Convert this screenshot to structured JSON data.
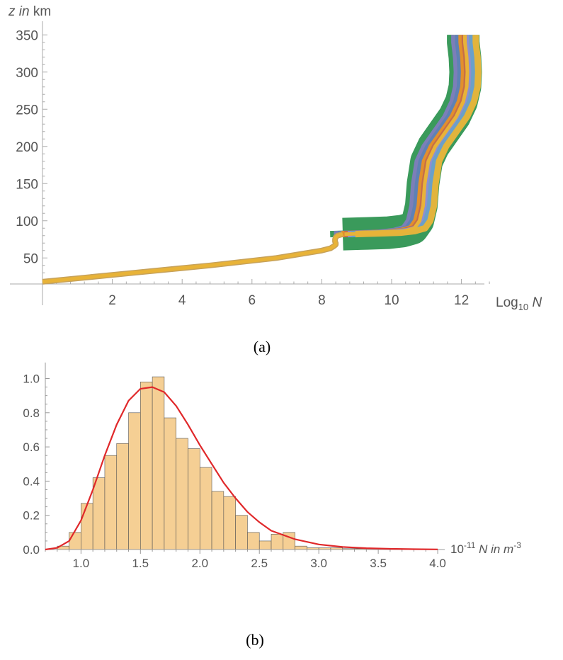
{
  "chart_data": [
    {
      "type": "line",
      "caption": "(a)",
      "y_label": {
        "var": "z",
        "mid": " in ",
        "unit": "km"
      },
      "x_label": {
        "pre": "Log",
        "sub": "10",
        "post": " N"
      },
      "xlim": [
        0,
        13.2
      ],
      "ylim": [
        15,
        360
      ],
      "x_ticks": [
        2,
        4,
        6,
        8,
        10,
        12
      ],
      "y_ticks": [
        50,
        100,
        150,
        200,
        250,
        300,
        350
      ],
      "grid": false,
      "lower_profile": {
        "z": [
          18,
          30,
          40,
          50,
          60,
          63,
          66,
          68,
          70,
          72,
          75,
          78,
          80,
          82
        ],
        "log10N": [
          0.0,
          2.6,
          4.8,
          6.7,
          8.0,
          8.25,
          8.35,
          8.4,
          8.4,
          8.38,
          8.38,
          8.4,
          8.45,
          8.6
        ]
      },
      "upper_profile": {
        "z": [
          82,
          83,
          84,
          86,
          90,
          100,
          120,
          150,
          180,
          200,
          220,
          240,
          260,
          280,
          300,
          320,
          340,
          350
        ],
        "log10N": [
          8.6,
          9.3,
          9.9,
          10.3,
          10.6,
          10.75,
          10.85,
          10.9,
          11.0,
          11.2,
          11.5,
          11.8,
          12.0,
          12.1,
          12.12,
          12.1,
          12.05,
          12.05
        ]
      },
      "series_offsets": [
        -0.4,
        -0.28,
        -0.16,
        -0.05,
        0.05,
        0.16,
        0.28,
        0.4
      ],
      "series_colors": [
        "#3a9a5b",
        "#7c7fb8",
        "#5e81b5",
        "#e28f2c",
        "#c56d4a",
        "#8f8fcf",
        "#6aa0c9",
        "#e2b43c"
      ],
      "highlight_color": "#e8b338"
    },
    {
      "type": "bar",
      "caption": "(b)",
      "x_label": {
        "pre": "10",
        "sup": "-11",
        "mid": " N in m",
        "sup2": "-3"
      },
      "xlim": [
        0.7,
        4.0
      ],
      "ylim": [
        0,
        1.05
      ],
      "x_ticks": [
        1.0,
        1.5,
        2.0,
        2.5,
        3.0,
        3.5,
        4.0
      ],
      "y_ticks": [
        0.0,
        0.2,
        0.4,
        0.6,
        0.8,
        1.0
      ],
      "bin_width": 0.1,
      "bin_starts": [
        0.8,
        0.9,
        1.0,
        1.1,
        1.2,
        1.3,
        1.4,
        1.5,
        1.6,
        1.7,
        1.8,
        1.9,
        2.0,
        2.1,
        2.2,
        2.3,
        2.4,
        2.5,
        2.6,
        2.7,
        2.8,
        2.9,
        3.0,
        3.1,
        3.2,
        3.3,
        3.4,
        3.5
      ],
      "values": [
        0.02,
        0.1,
        0.27,
        0.42,
        0.55,
        0.62,
        0.8,
        0.98,
        1.01,
        0.77,
        0.65,
        0.59,
        0.48,
        0.34,
        0.31,
        0.2,
        0.1,
        0.05,
        0.09,
        0.1,
        0.02,
        0.01,
        0.01,
        0.01,
        0.005,
        0.005,
        0.005,
        0.005
      ],
      "fit_curve": {
        "type": "lognormal",
        "peak_x": 1.6,
        "peak_y": 0.95,
        "x": [
          0.7,
          0.8,
          0.9,
          1.0,
          1.1,
          1.2,
          1.3,
          1.4,
          1.5,
          1.6,
          1.7,
          1.8,
          1.9,
          2.0,
          2.1,
          2.2,
          2.3,
          2.4,
          2.5,
          2.6,
          2.8,
          3.0,
          3.2,
          3.4,
          3.6,
          3.8,
          4.0
        ],
        "y": [
          0.0,
          0.01,
          0.05,
          0.17,
          0.35,
          0.55,
          0.73,
          0.87,
          0.94,
          0.95,
          0.92,
          0.84,
          0.73,
          0.61,
          0.5,
          0.39,
          0.3,
          0.22,
          0.16,
          0.11,
          0.06,
          0.03,
          0.015,
          0.008,
          0.004,
          0.002,
          0.001
        ]
      },
      "bar_fill": "#f5cf94",
      "bar_stroke": "#555555",
      "fit_color": "#e0282a",
      "grid": false
    }
  ]
}
